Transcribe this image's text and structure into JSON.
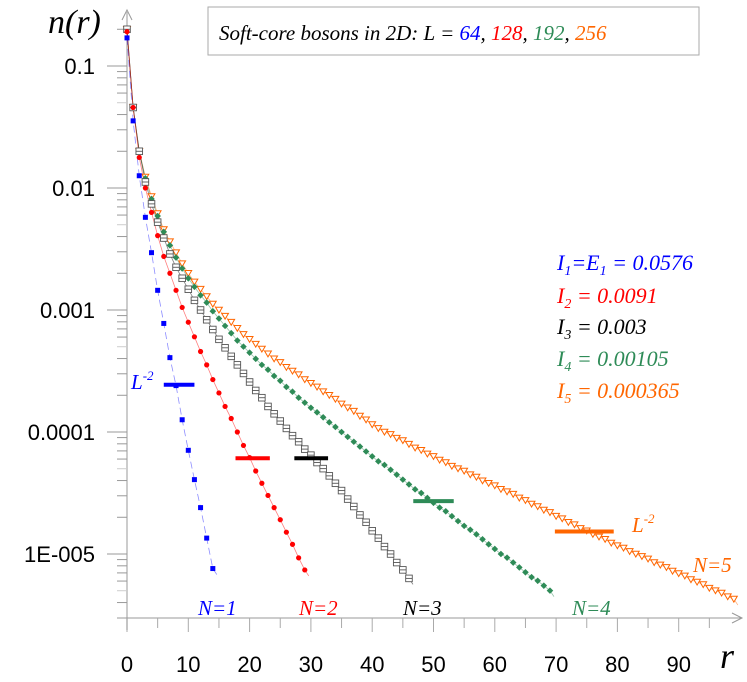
{
  "chart_data": {
    "type": "scatter",
    "title_parts": [
      {
        "text": "Soft-core bosons in 2D: L = ",
        "color": "#000000"
      },
      {
        "text": "64",
        "color": "#0000ff"
      },
      {
        "text": ", ",
        "color": "#000000"
      },
      {
        "text": "128",
        "color": "#ff0000"
      },
      {
        "text": ", ",
        "color": "#000000"
      },
      {
        "text": "192",
        "color": "#2e8b57"
      },
      {
        "text": ", ",
        "color": "#000000"
      },
      {
        "text": "256",
        "color": "#ff6600"
      }
    ],
    "xlabel": "r",
    "ylabel": "n(r)",
    "xlim": [
      0,
      98
    ],
    "ylim": [
      5e-07,
      0.25
    ],
    "yscale": "log",
    "grid": false,
    "x_ticks": [
      "0",
      "10",
      "20",
      "30",
      "40",
      "50",
      "60",
      "70",
      "80",
      "90"
    ],
    "y_ticks": [
      {
        "value": 0.1,
        "label": "0.1"
      },
      {
        "value": 0.01,
        "label": "0.01"
      },
      {
        "value": 0.001,
        "label": "0.001"
      },
      {
        "value": 0.0001,
        "label": "0.0001"
      },
      {
        "value": 1e-05,
        "label": "1E-005"
      }
    ],
    "x": [
      0,
      1,
      2,
      3,
      4,
      5,
      6,
      7,
      8,
      9,
      10,
      11,
      12,
      13,
      14,
      15,
      16,
      17,
      18,
      19,
      20,
      21,
      22,
      23,
      24,
      25,
      26,
      27,
      28,
      29,
      30,
      31,
      32,
      33,
      34,
      35,
      36,
      37,
      38,
      39,
      40,
      41,
      42,
      43,
      44,
      45,
      46,
      47,
      48,
      49,
      50,
      51,
      52,
      53,
      54,
      55,
      56,
      57,
      58,
      59,
      60,
      61,
      62,
      63,
      64,
      65,
      66,
      67,
      68,
      69,
      70,
      71,
      72,
      73,
      74,
      75,
      76,
      77,
      78,
      79,
      80,
      81,
      82,
      83,
      84,
      85,
      86,
      87,
      88,
      89,
      90,
      91,
      92,
      93,
      94,
      95,
      96,
      97,
      98,
      99
    ],
    "series": [
      {
        "label": "N=1",
        "color": "#0000ff",
        "marker": "square",
        "values": [
          0.17,
          0.0355,
          0.0126,
          0.00575,
          0.00295,
          0.00145,
          0.000776,
          0.000407,
          0.00024,
          0.000126,
          7.08e-05,
          4.07e-05,
          2.4e-05,
          1.35e-05,
          7.6e-06
        ]
      },
      {
        "label": "N=2",
        "color": "#ff0000",
        "marker": "circle",
        "values": [
          0.191,
          0.0457,
          0.0178,
          0.01,
          0.00631,
          0.00407,
          0.00275,
          0.002,
          0.00145,
          0.00105,
          0.000794,
          0.000603,
          0.000457,
          0.000355,
          0.000269,
          0.000209,
          0.000162,
          0.000129,
          0.0001,
          7.76e-05,
          6.17e-05,
          4.79e-05,
          3.8e-05,
          3.02e-05,
          2.4e-05,
          1.91e-05,
          1.51e-05,
          1.2e-05,
          9.3e-06,
          7.4e-06
        ]
      },
      {
        "label": "N=3",
        "color": "#000000",
        "marker": "open-square",
        "values": [
          0.2,
          0.0457,
          0.02,
          0.0112,
          0.00741,
          0.00525,
          0.00389,
          0.00288,
          0.00224,
          0.00182,
          0.00148,
          0.0012,
          0.001,
          0.000832,
          0.000692,
          0.000575,
          0.00049,
          0.000417,
          0.000355,
          0.000302,
          0.000257,
          0.000219,
          0.000191,
          0.000162,
          0.000141,
          0.000123,
          0.000107,
          9.33e-05,
          8.32e-05,
          7.24e-05,
          6.46e-05,
          5.62e-05,
          5.01e-05,
          4.37e-05,
          3.8e-05,
          3.31e-05,
          2.82e-05,
          2.45e-05,
          2.09e-05,
          1.82e-05,
          1.55e-05,
          1.35e-05,
          1.15e-05,
          1e-05,
          8.51e-06,
          7.41e-06,
          6.31e-06
        ]
      },
      {
        "label": "N=4",
        "color": "#2e8b57",
        "marker": "diamond",
        "values": [
          0.2,
          0.0457,
          0.02,
          0.012,
          0.00813,
          0.00589,
          0.00437,
          0.00339,
          0.00269,
          0.00219,
          0.00182,
          0.00155,
          0.00132,
          0.00115,
          0.000977,
          0.000851,
          0.000741,
          0.000646,
          0.000562,
          0.000501,
          0.000447,
          0.000398,
          0.000355,
          0.000324,
          0.000288,
          0.000263,
          0.000234,
          0.000214,
          0.000191,
          0.000174,
          0.000158,
          0.000145,
          0.000132,
          0.00012,
          0.00011,
          0.0001,
          9.12e-05,
          8.32e-05,
          7.59e-05,
          6.92e-05,
          6.31e-05,
          5.75e-05,
          5.37e-05,
          4.9e-05,
          4.47e-05,
          4.07e-05,
          3.72e-05,
          3.39e-05,
          3.16e-05,
          2.88e-05,
          2.63e-05,
          2.4e-05,
          2.24e-05,
          2.04e-05,
          1.86e-05,
          1.7e-05,
          1.58e-05,
          1.45e-05,
          1.32e-05,
          1.2e-05,
          1.1e-05,
          1e-05,
          9.33e-06,
          8.51e-06,
          7.76e-06,
          7.08e-06,
          6.46e-06,
          6.03e-06,
          5.5e-06,
          5.01e-06
        ]
      },
      {
        "label": "N=5",
        "color": "#ff6600",
        "marker": "open-triangle-down",
        "values": [
          0.2,
          0.0457,
          0.02,
          0.0123,
          0.00851,
          0.00617,
          0.00457,
          0.00363,
          0.00295,
          0.0024,
          0.002,
          0.0017,
          0.00148,
          0.00129,
          0.00112,
          0.001,
          0.000891,
          0.000794,
          0.000708,
          0.000631,
          0.000575,
          0.000525,
          0.000479,
          0.000437,
          0.000398,
          0.000372,
          0.000339,
          0.000316,
          0.000295,
          0.000269,
          0.000251,
          0.000234,
          0.000214,
          0.0002,
          0.000186,
          0.00017,
          0.000158,
          0.000148,
          0.000135,
          0.000126,
          0.000115,
          0.000107,
          0.0001,
          9.55e-05,
          8.91e-05,
          8.51e-05,
          7.94e-05,
          7.41e-05,
          7.08e-05,
          6.61e-05,
          6.31e-05,
          5.89e-05,
          5.62e-05,
          5.25e-05,
          5.01e-05,
          4.79e-05,
          4.47e-05,
          4.27e-05,
          3.98e-05,
          3.8e-05,
          3.63e-05,
          3.39e-05,
          3.24e-05,
          3.09e-05,
          2.88e-05,
          2.75e-05,
          2.57e-05,
          2.45e-05,
          2.29e-05,
          2.19e-05,
          2.04e-05,
          1.95e-05,
          1.82e-05,
          1.74e-05,
          1.62e-05,
          1.55e-05,
          1.45e-05,
          1.38e-05,
          1.32e-05,
          1.23e-05,
          1.17e-05,
          1.12e-05,
          1.05e-05,
          1e-05,
          9.55e-06,
          9.12e-06,
          8.51e-06,
          8.13e-06,
          7.76e-06,
          7.24e-06,
          6.92e-06,
          6.61e-06,
          6.17e-06,
          5.89e-06,
          5.62e-06,
          5.25e-06,
          5.01e-06,
          4.79e-06,
          4.47e-06,
          4.27e-06
        ]
      }
    ],
    "reference_bars": [
      {
        "color": "#0000ff",
        "y": 0.000244,
        "x_range": [
          6,
          11
        ]
      },
      {
        "color": "#ff0000",
        "y": 6.1e-05,
        "x_range": [
          17.7,
          23.3
        ]
      },
      {
        "color": "#000000",
        "y": 6.1e-05,
        "x_range": [
          27.3,
          32.8
        ]
      },
      {
        "color": "#2e8b57",
        "y": 2.71e-05,
        "x_range": [
          46.7,
          53.3
        ]
      },
      {
        "color": "#ff6600",
        "y": 1.53e-05,
        "x_range": [
          69.8,
          79.4
        ]
      }
    ],
    "annotations": {
      "L_blue": {
        "base": "L",
        "sup": "-2",
        "color": "#0000ff"
      },
      "L_orange": {
        "base": "L",
        "sup": "-2",
        "color": "#ff6600"
      },
      "N_labels": [
        "N=1",
        "N=2",
        "N=3",
        "N=4",
        "N=5"
      ],
      "I_lines": [
        {
          "parts": [
            "I",
            "1",
            "=E",
            "1",
            " = 0.0576"
          ],
          "color": "#0000ff"
        },
        {
          "parts": [
            "I",
            "2",
            "",
            "",
            " = 0.0091"
          ],
          "color": "#ff0000"
        },
        {
          "parts": [
            "I",
            "3",
            "",
            "",
            " = 0.003"
          ],
          "color": "#000000"
        },
        {
          "parts": [
            "I",
            "4",
            "",
            "",
            " = 0.00105"
          ],
          "color": "#2e8b57"
        },
        {
          "parts": [
            "I",
            "5",
            "",
            "",
            " = 0.000365"
          ],
          "color": "#ff6600"
        }
      ]
    }
  }
}
